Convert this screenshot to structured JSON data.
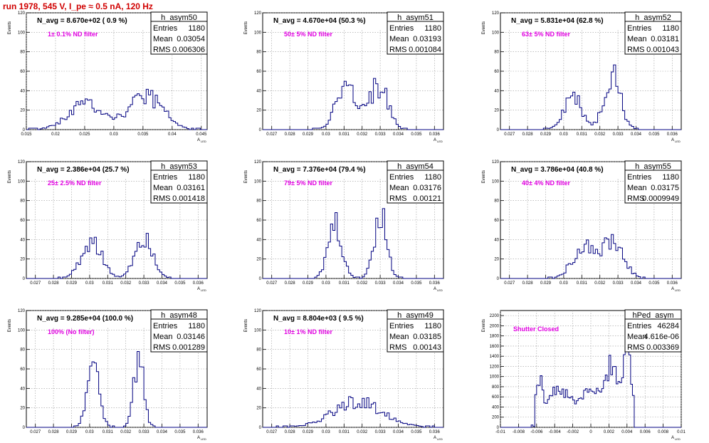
{
  "page_title": "run 1978,   545 V, I_pe ≈ 0.5 nA, 120 Hz",
  "colors": {
    "title": "#d00000",
    "hist": "#000080",
    "note": "#e000e0",
    "grid": "#9a9a9a"
  },
  "chart_data": [
    {
      "type": "bar",
      "name": "h_asym50",
      "entries": "1180",
      "mean": "0.03054",
      "rms": "0.006306",
      "header": "N_avg = 8.670e+02 ( 0.9 %)",
      "note": "1± 0.1% ND filter",
      "ylabel": "Events",
      "xlabel": "A",
      "xlabel_sub": "LED",
      "xlim": [
        0.015,
        0.046
      ],
      "ylim": [
        0,
        120
      ],
      "xticks": [
        0.015,
        0.02,
        0.025,
        0.03,
        0.035,
        0.04,
        0.045
      ],
      "xtick_labels": [
        "0.015",
        "0.02",
        "0.025",
        "0.03",
        "0.035",
        "0.04",
        "0.045"
      ],
      "yticks": [
        0,
        20,
        40,
        60,
        80,
        100,
        120
      ],
      "ytick_labels": [
        "0",
        "20",
        "40",
        "60",
        "80",
        "100",
        "120"
      ],
      "peaks": [
        {
          "c": 0.0254,
          "s": 0.0031,
          "a": 26
        },
        {
          "c": 0.0356,
          "s": 0.0028,
          "a": 34
        }
      ]
    },
    {
      "type": "bar",
      "name": "h_asym51",
      "entries": "1180",
      "mean": "0.03193",
      "rms": "0.001084",
      "header": "N_avg = 4.670e+04 (50.3 %)",
      "note": "50± 5% ND filter",
      "ylabel": "Events",
      "xlabel": "A",
      "xlabel_sub": "LED",
      "xlim": [
        0.0265,
        0.0365
      ],
      "ylim": [
        0,
        120
      ],
      "xticks": [
        0.027,
        0.028,
        0.029,
        0.03,
        0.031,
        0.032,
        0.033,
        0.034,
        0.035,
        0.036
      ],
      "xtick_labels": [
        "0.027",
        "0.028",
        "0.029",
        "0.03",
        "0.031",
        "0.032",
        "0.033",
        "0.034",
        "0.035",
        "0.036"
      ],
      "yticks": [
        0,
        20,
        40,
        60,
        80,
        100,
        120
      ],
      "ytick_labels": [
        "0",
        "20",
        "40",
        "60",
        "80",
        "100",
        "120"
      ],
      "peaks": [
        {
          "c": 0.0311,
          "s": 0.00055,
          "a": 44
        },
        {
          "c": 0.0329,
          "s": 0.0005,
          "a": 46
        }
      ]
    },
    {
      "type": "bar",
      "name": "h_asym52",
      "entries": "1180",
      "mean": "0.03181",
      "rms": "0.001043",
      "header": "N_avg = 5.831e+04 (62.8 %)",
      "note": "63± 5% ND filter",
      "ylabel": "Events",
      "xlabel": "A",
      "xlabel_sub": "LED",
      "xlim": [
        0.0265,
        0.0365
      ],
      "ylim": [
        0,
        120
      ],
      "xticks": [
        0.027,
        0.028,
        0.029,
        0.03,
        0.031,
        0.032,
        0.033,
        0.034,
        0.035,
        0.036
      ],
      "xtick_labels": [
        "0.027",
        "0.028",
        "0.029",
        "0.03",
        "0.031",
        "0.032",
        "0.033",
        "0.034",
        "0.035",
        "0.036"
      ],
      "yticks": [
        0,
        20,
        40,
        60,
        80,
        100,
        120
      ],
      "ytick_labels": [
        "0",
        "20",
        "40",
        "60",
        "80",
        "100",
        "120"
      ],
      "peaks": [
        {
          "c": 0.0305,
          "s": 0.0005,
          "a": 33
        },
        {
          "c": 0.0327,
          "s": 0.00045,
          "a": 56
        }
      ]
    },
    {
      "type": "bar",
      "name": "h_asym53",
      "entries": "1180",
      "mean": "0.03161",
      "rms": "0.001418",
      "header": "N_avg = 2.386e+04 (25.7 %)",
      "note": "25± 2.5% ND filter",
      "ylabel": "Events",
      "xlabel": "A",
      "xlabel_sub": "LED",
      "xlim": [
        0.0265,
        0.0365
      ],
      "ylim": [
        0,
        120
      ],
      "xticks": [
        0.027,
        0.028,
        0.029,
        0.03,
        0.031,
        0.032,
        0.033,
        0.034,
        0.035,
        0.036
      ],
      "xtick_labels": [
        "0.027",
        "0.028",
        "0.029",
        "0.03",
        "0.031",
        "0.032",
        "0.033",
        "0.034",
        "0.035",
        "0.036"
      ],
      "yticks": [
        0,
        20,
        40,
        60,
        80,
        100,
        120
      ],
      "ytick_labels": [
        "0",
        "20",
        "40",
        "60",
        "80",
        "100",
        "120"
      ],
      "peaks": [
        {
          "c": 0.0301,
          "s": 0.00055,
          "a": 40
        },
        {
          "c": 0.033,
          "s": 0.0005,
          "a": 44
        }
      ]
    },
    {
      "type": "bar",
      "name": "h_asym54",
      "entries": "1180",
      "mean": "0.03176",
      "rms": "0.00121",
      "header": "N_avg = 7.376e+04 (79.4 %)",
      "note": "79± 5% ND filter",
      "ylabel": "Events",
      "xlabel": "A",
      "xlabel_sub": "LED",
      "xlim": [
        0.0265,
        0.0365
      ],
      "ylim": [
        0,
        120
      ],
      "xticks": [
        0.027,
        0.028,
        0.029,
        0.03,
        0.031,
        0.032,
        0.033,
        0.034,
        0.035,
        0.036
      ],
      "xtick_labels": [
        "0.027",
        "0.028",
        "0.029",
        "0.03",
        "0.031",
        "0.032",
        "0.033",
        "0.034",
        "0.035",
        "0.036"
      ],
      "yticks": [
        0,
        20,
        40,
        60,
        80,
        100,
        120
      ],
      "ytick_labels": [
        "0",
        "20",
        "40",
        "60",
        "80",
        "100",
        "120"
      ],
      "peaks": [
        {
          "c": 0.0305,
          "s": 0.00038,
          "a": 54
        },
        {
          "c": 0.033,
          "s": 0.00035,
          "a": 66
        }
      ]
    },
    {
      "type": "bar",
      "name": "h_asym55",
      "entries": "1180",
      "mean": "0.03175",
      "rms": "0.0009949",
      "header": "N_avg = 3.786e+04 (40.8 %)",
      "note": "40± 4% ND filter",
      "ylabel": "Events",
      "xlabel": "A",
      "xlabel_sub": "LED",
      "xlim": [
        0.0265,
        0.0365
      ],
      "ylim": [
        0,
        120
      ],
      "xticks": [
        0.027,
        0.028,
        0.029,
        0.03,
        0.031,
        0.032,
        0.033,
        0.034,
        0.035,
        0.036
      ],
      "xtick_labels": [
        "0.027",
        "0.028",
        "0.029",
        "0.03",
        "0.031",
        "0.032",
        "0.033",
        "0.034",
        "0.035",
        "0.036"
      ],
      "yticks": [
        0,
        20,
        40,
        60,
        80,
        100,
        120
      ],
      "ytick_labels": [
        "0",
        "20",
        "40",
        "60",
        "80",
        "100",
        "120"
      ],
      "peaks": [
        {
          "c": 0.0311,
          "s": 0.0006,
          "a": 34
        },
        {
          "c": 0.0327,
          "s": 0.0006,
          "a": 36
        }
      ]
    },
    {
      "type": "bar",
      "name": "h_asym48",
      "entries": "1180",
      "mean": "0.03146",
      "rms": "0.001289",
      "header": "N_avg = 9.285e+04 (100.0 %)",
      "note": "100% (No filter)",
      "ylabel": "Events",
      "xlabel": "A",
      "xlabel_sub": "LED",
      "xlim": [
        0.0265,
        0.0365
      ],
      "ylim": [
        0,
        120
      ],
      "xticks": [
        0.027,
        0.028,
        0.029,
        0.03,
        0.031,
        0.032,
        0.033,
        0.034,
        0.035,
        0.036
      ],
      "xtick_labels": [
        "0.027",
        "0.028",
        "0.029",
        "0.03",
        "0.031",
        "0.032",
        "0.033",
        "0.034",
        "0.035",
        "0.036"
      ],
      "yticks": [
        0,
        20,
        40,
        60,
        80,
        100,
        120
      ],
      "ytick_labels": [
        "0",
        "20",
        "40",
        "60",
        "80",
        "100",
        "120"
      ],
      "peaks": [
        {
          "c": 0.0302,
          "s": 0.00032,
          "a": 68
        },
        {
          "c": 0.0327,
          "s": 0.00028,
          "a": 74
        }
      ]
    },
    {
      "type": "bar",
      "name": "h_asym49",
      "entries": "1180",
      "mean": "0.03185",
      "rms": "0.00143",
      "header": "N_avg = 8.804e+03 ( 9.5 %)",
      "note": "10± 1% ND filter",
      "ylabel": "Events",
      "xlabel": "A",
      "xlabel_sub": "LED",
      "xlim": [
        0.0265,
        0.0365
      ],
      "ylim": [
        0,
        120
      ],
      "xticks": [
        0.027,
        0.028,
        0.029,
        0.03,
        0.031,
        0.032,
        0.033,
        0.034,
        0.035,
        0.036
      ],
      "xtick_labels": [
        "0.027",
        "0.028",
        "0.029",
        "0.03",
        "0.031",
        "0.032",
        "0.033",
        "0.034",
        "0.035",
        "0.036"
      ],
      "yticks": [
        0,
        20,
        40,
        60,
        80,
        100,
        120
      ],
      "ytick_labels": [
        "0",
        "20",
        "40",
        "60",
        "80",
        "100",
        "120"
      ],
      "peaks": [
        {
          "c": 0.0318,
          "s": 0.0014,
          "a": 26
        }
      ]
    },
    {
      "type": "bar",
      "name": "hPed_asym",
      "entries": "46284",
      "mean": "4.616e-06",
      "rms": "0.003369",
      "header": "",
      "note": "Shutter Closed",
      "ylabel": "Events",
      "xlabel": "A",
      "xlabel_sub": "LED",
      "xlim": [
        -0.01,
        0.01
      ],
      "ylim": [
        0,
        2300
      ],
      "xticks": [
        -0.01,
        -0.008,
        -0.006,
        -0.004,
        -0.002,
        0,
        0.002,
        0.004,
        0.006,
        0.008,
        0.01
      ],
      "xtick_labels": [
        "-0.01",
        "-0.008",
        "-0.006",
        "-0.004",
        "-0.002",
        "0",
        "0.002",
        "0.004",
        "0.006",
        "0.008",
        "0.01"
      ],
      "yticks": [
        0,
        200,
        400,
        600,
        800,
        1000,
        1200,
        1400,
        1600,
        1800,
        2000,
        2200
      ],
      "ytick_labels": [
        "0",
        "200",
        "400",
        "600",
        "800",
        "1000",
        "1200",
        "1400",
        "1600",
        "1800",
        "2000",
        "2200"
      ],
      "pedestal": true
    }
  ]
}
